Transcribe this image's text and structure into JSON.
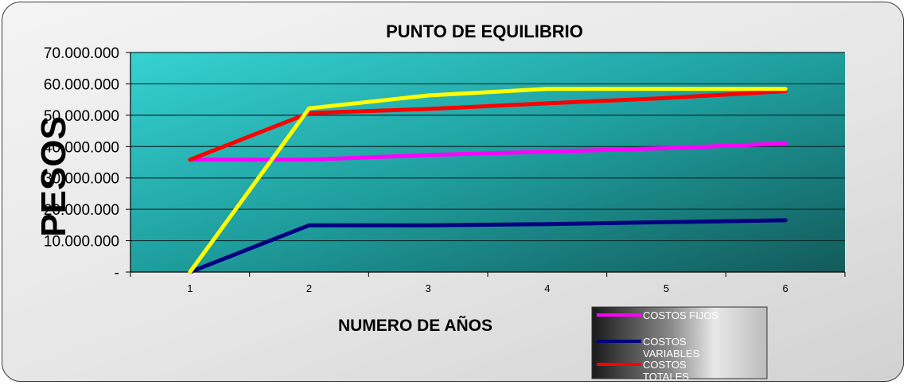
{
  "chart_data": {
    "type": "line",
    "title": "PUNTO DE EQUILIBRIO",
    "xlabel": "NUMERO DE AÑOS",
    "ylabel": "PESOS",
    "x": [
      "1",
      "2",
      "3",
      "4",
      "5",
      "6"
    ],
    "yticks": [
      "-",
      "10.000.000",
      "20.000.000",
      "30.000.000",
      "40.000.000",
      "50.000.000",
      "60.000.000",
      "70.000.000"
    ],
    "ylim": [
      0,
      70000000
    ],
    "grid": true,
    "legend_position": "bottom-right",
    "series": [
      {
        "name": "COSTOS FIJOS",
        "color": "#ff00ff",
        "values": [
          35800000,
          35800000,
          37300000,
          38400000,
          39500000,
          41000000
        ]
      },
      {
        "name": "COSTOS VARIABLES",
        "color": "#000080",
        "values": [
          0,
          14900000,
          14900000,
          15300000,
          15900000,
          16500000
        ]
      },
      {
        "name": "COSTOS TOTALES",
        "color": "#ff0000",
        "values": [
          35800000,
          50700000,
          52000000,
          53800000,
          55500000,
          57700000
        ]
      },
      {
        "color": "#ffff00",
        "values": [
          0,
          52200000,
          56300000,
          58400000,
          58400000,
          58400000
        ]
      }
    ]
  }
}
